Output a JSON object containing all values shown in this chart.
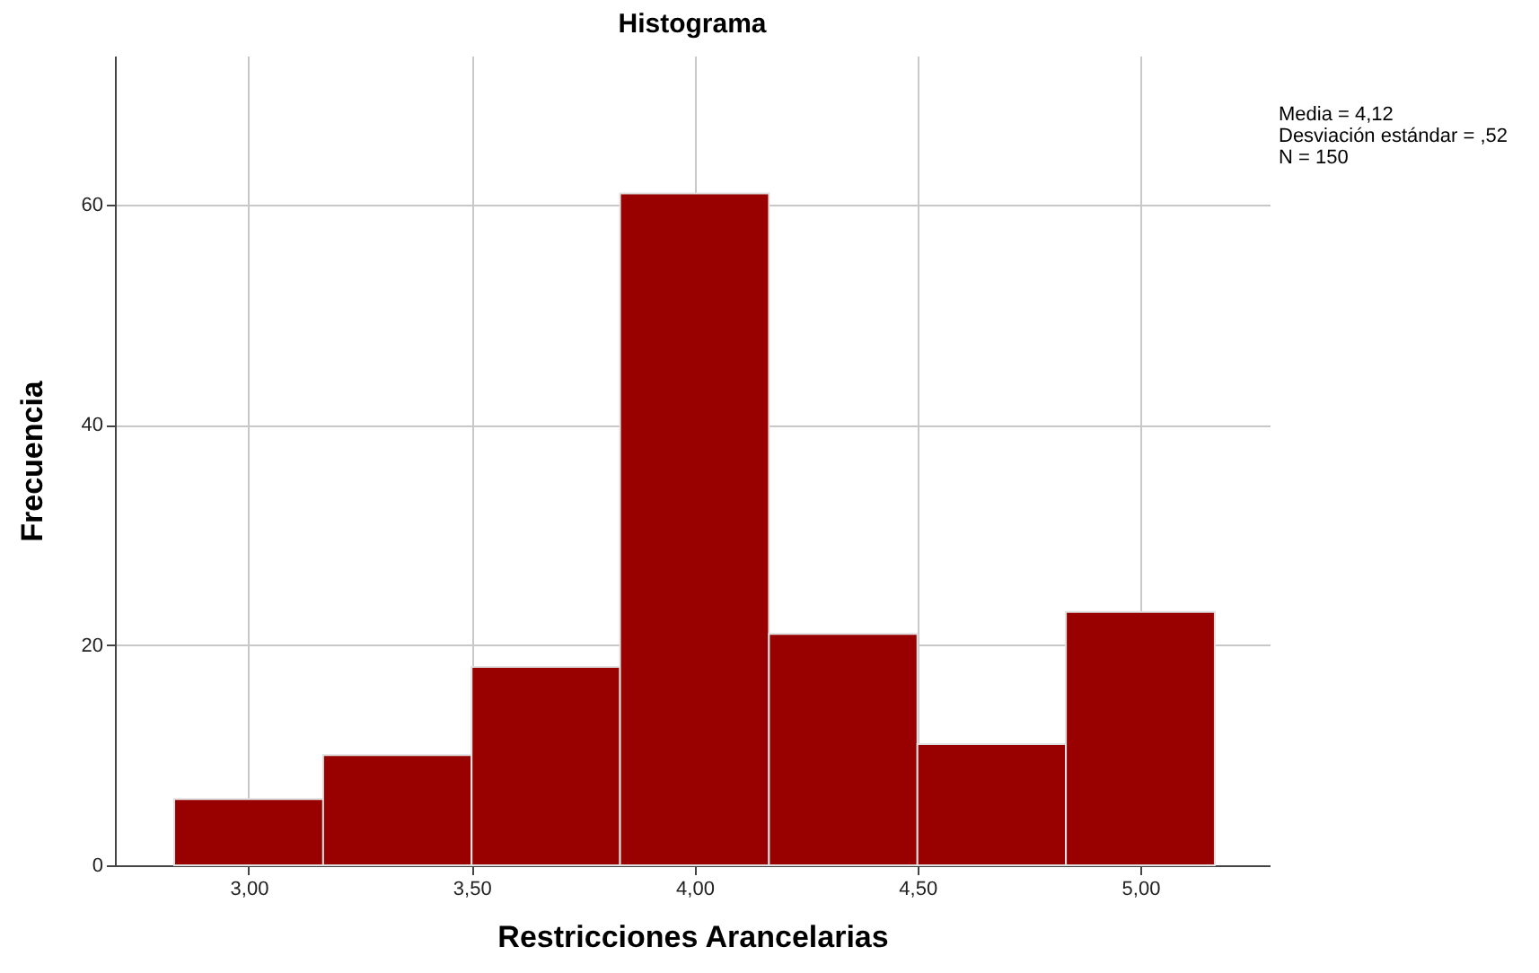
{
  "chart_data": {
    "type": "histogram",
    "title": "Histograma",
    "xlabel": "Restricciones Arancelarias",
    "ylabel": "Frecuencia",
    "bins": [
      2.833,
      3.167,
      3.5,
      3.833,
      4.167,
      4.5,
      4.833,
      5.167
    ],
    "values": [
      6,
      10,
      18,
      61,
      21,
      11,
      23
    ],
    "color": "#990000",
    "xlim": [
      2.7,
      5.29
    ],
    "xticks": [
      {
        "value": 3,
        "label": "3,00"
      },
      {
        "value": 3.5,
        "label": "3,50"
      },
      {
        "value": 4,
        "label": "4,00"
      },
      {
        "value": 4.5,
        "label": "4,50"
      },
      {
        "value": 5,
        "label": "5,00"
      }
    ],
    "ylim": [
      0,
      73.5
    ],
    "yticks": [
      0,
      20,
      40,
      60
    ],
    "grid": true,
    "annotations": [
      "Media = 4,12",
      "Desviación estándar = ,52",
      "N = 150"
    ]
  }
}
